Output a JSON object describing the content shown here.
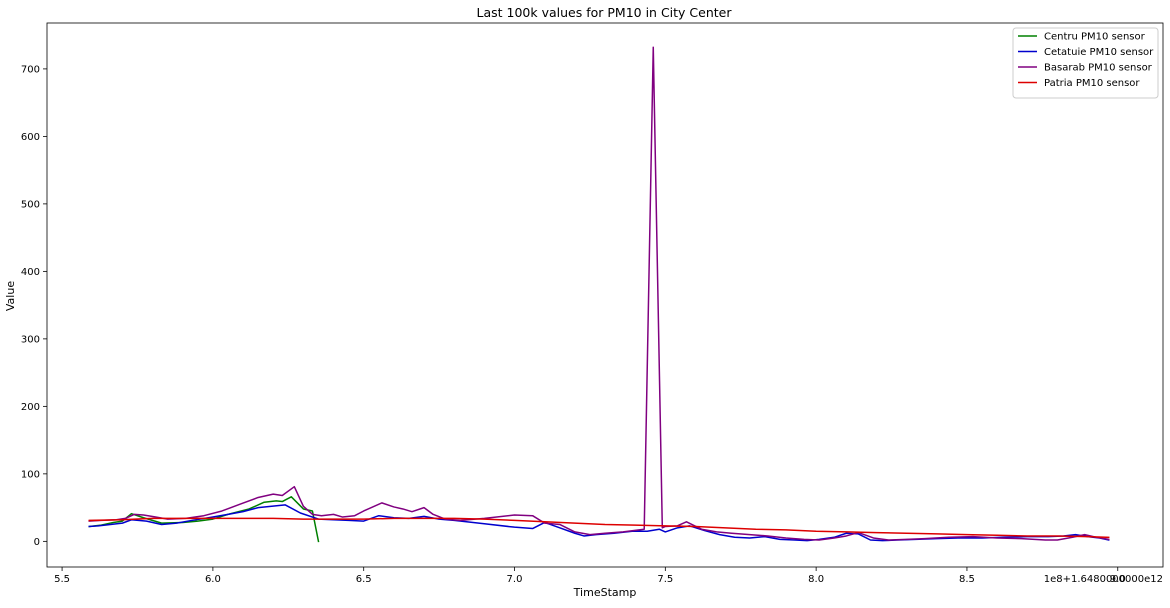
{
  "chart_data": {
    "type": "line",
    "title": "Last 100k values for PM10 in City Center",
    "xlabel": "TimeStamp",
    "ylabel": "Value",
    "x_offset_label": "1e8+1.6480000000e12",
    "xlim": [
      5.45,
      9.15
    ],
    "ylim": [
      -38,
      768
    ],
    "x_ticks": [
      {
        "value": 5.5,
        "label": "5.5"
      },
      {
        "value": 6.0,
        "label": "6.0"
      },
      {
        "value": 6.5,
        "label": "6.5"
      },
      {
        "value": 7.0,
        "label": "7.0"
      },
      {
        "value": 7.5,
        "label": "7.5"
      },
      {
        "value": 8.0,
        "label": "8.0"
      },
      {
        "value": 8.5,
        "label": "8.5"
      },
      {
        "value": 9.0,
        "label": "9.0"
      }
    ],
    "y_ticks": [
      {
        "value": 0,
        "label": "0"
      },
      {
        "value": 100,
        "label": "100"
      },
      {
        "value": 200,
        "label": "200"
      },
      {
        "value": 300,
        "label": "300"
      },
      {
        "value": 400,
        "label": "400"
      },
      {
        "value": 500,
        "label": "500"
      },
      {
        "value": 600,
        "label": "600"
      },
      {
        "value": 700,
        "label": "700"
      }
    ],
    "grid": false,
    "legend_position": "top-right",
    "series": [
      {
        "name": "Centru PM10 sensor",
        "color": "#008000",
        "x": [
          5.59,
          5.63,
          5.67,
          5.7,
          5.73,
          5.77,
          5.83,
          5.9,
          5.95,
          6.0,
          6.05,
          6.12,
          6.17,
          6.21,
          6.23,
          6.26,
          6.3,
          6.33,
          6.35
        ],
        "y": [
          22,
          24,
          28,
          30,
          41,
          35,
          27,
          28,
          30,
          33,
          40,
          48,
          58,
          60,
          59,
          66,
          48,
          45,
          0
        ]
      },
      {
        "name": "Cetatuie PM10 sensor",
        "color": "#0000cd",
        "x": [
          5.59,
          5.62,
          5.66,
          5.7,
          5.73,
          5.78,
          5.83,
          5.88,
          5.93,
          6.0,
          6.05,
          6.1,
          6.15,
          6.24,
          6.29,
          6.35,
          6.4,
          6.45,
          6.5,
          6.55,
          6.6,
          6.65,
          6.7,
          6.75,
          6.8,
          6.9,
          7.0,
          7.06,
          7.1,
          7.15,
          7.2,
          7.23,
          7.27,
          7.33,
          7.39,
          7.44,
          7.48,
          7.5,
          7.54,
          7.58,
          7.63,
          7.68,
          7.73,
          7.78,
          7.83,
          7.88,
          7.93,
          7.97,
          8.01,
          8.06,
          8.1,
          8.14,
          8.18,
          8.22,
          8.27,
          8.33,
          8.4,
          8.47,
          8.55,
          8.62,
          8.7,
          8.77,
          8.82,
          8.86,
          8.9,
          8.94,
          8.97
        ],
        "y": [
          22,
          23,
          25,
          27,
          32,
          30,
          25,
          27,
          31,
          36,
          40,
          44,
          50,
          54,
          42,
          33,
          32,
          31,
          30,
          38,
          35,
          34,
          37,
          33,
          31,
          26,
          21,
          19,
          28,
          20,
          12,
          8,
          10,
          12,
          15,
          15,
          18,
          14,
          20,
          23,
          16,
          10,
          6,
          5,
          7,
          3,
          2,
          1,
          3,
          6,
          12,
          11,
          2,
          1,
          2,
          3,
          4,
          5,
          5,
          6,
          7,
          7,
          8,
          10,
          7,
          5,
          2
        ]
      },
      {
        "name": "Basarab PM10 sensor",
        "color": "#800080",
        "x": [
          5.59,
          5.63,
          5.68,
          5.71,
          5.74,
          5.77,
          5.81,
          5.85,
          5.91,
          5.97,
          6.03,
          6.09,
          6.15,
          6.2,
          6.23,
          6.27,
          6.3,
          6.33,
          6.36,
          6.4,
          6.43,
          6.47,
          6.5,
          6.56,
          6.6,
          6.63,
          6.66,
          6.7,
          6.73,
          6.77,
          6.82,
          6.9,
          7.0,
          7.06,
          7.1,
          7.15,
          7.2,
          7.25,
          7.3,
          7.36,
          7.43,
          7.46,
          7.49,
          7.5,
          7.54,
          7.57,
          7.62,
          7.67,
          7.72,
          7.78,
          7.84,
          7.9,
          7.96,
          8.01,
          8.06,
          8.1,
          8.14,
          8.19,
          8.24,
          8.3,
          8.36,
          8.44,
          8.52,
          8.6,
          8.68,
          8.76,
          8.8,
          8.85,
          8.89,
          8.93,
          8.97
        ],
        "y": [
          30,
          31,
          32,
          34,
          40,
          39,
          36,
          33,
          34,
          38,
          45,
          55,
          65,
          70,
          68,
          81,
          52,
          40,
          38,
          40,
          36,
          38,
          45,
          57,
          51,
          48,
          44,
          50,
          40,
          33,
          31,
          34,
          39,
          38,
          27,
          25,
          14,
          10,
          12,
          14,
          18,
          732,
          20,
          22,
          23,
          29,
          18,
          14,
          12,
          10,
          8,
          5,
          3,
          2,
          5,
          8,
          13,
          5,
          2,
          3,
          4,
          6,
          7,
          5,
          4,
          2,
          2,
          6,
          10,
          6,
          3
        ]
      },
      {
        "name": "Patria PM10 sensor",
        "color": "#dd0000",
        "x": [
          5.59,
          5.7,
          5.8,
          5.9,
          6.0,
          6.1,
          6.2,
          6.3,
          6.4,
          6.5,
          6.6,
          6.7,
          6.8,
          6.9,
          7.0,
          7.1,
          7.2,
          7.3,
          7.4,
          7.5,
          7.6,
          7.7,
          7.8,
          7.9,
          8.0,
          8.1,
          8.2,
          8.3,
          8.4,
          8.5,
          8.6,
          8.7,
          8.8,
          8.9,
          8.97
        ],
        "y": [
          31,
          32,
          34,
          34,
          34,
          34,
          34,
          33,
          33,
          33,
          34,
          34,
          34,
          33,
          31,
          29,
          27,
          25,
          24,
          23,
          22,
          20,
          18,
          17,
          15,
          14,
          13,
          12,
          11,
          10,
          9,
          8,
          8,
          7,
          6
        ]
      }
    ]
  }
}
